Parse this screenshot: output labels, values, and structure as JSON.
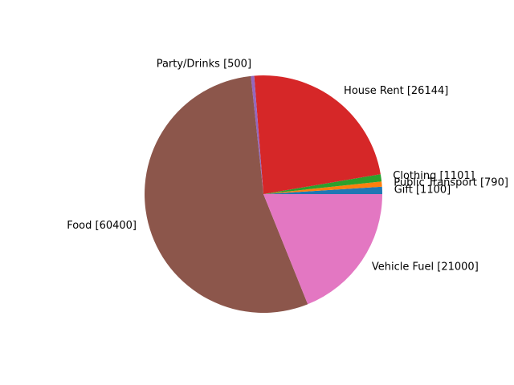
{
  "chart_data": {
    "type": "pie",
    "title": "",
    "slices": [
      {
        "label": "Gift [1100]",
        "value": 1100,
        "color": "#1f77b4"
      },
      {
        "label": "Public Transport [790]",
        "value": 790,
        "color": "#ff7f0e"
      },
      {
        "label": "Clothing [1101]",
        "value": 1101,
        "color": "#2ca02c"
      },
      {
        "label": "House Rent [26144]",
        "value": 26144,
        "color": "#d62728"
      },
      {
        "label": "Party/Drinks [500]",
        "value": 500,
        "color": "#9467bd"
      },
      {
        "label": "Food [60400]",
        "value": 60400,
        "color": "#8c564b"
      },
      {
        "label": "Vehicle Fuel [21000]",
        "value": 21000,
        "color": "#e377c2"
      }
    ],
    "start_angle": 0,
    "direction": "counterclockwise",
    "legend": "none"
  }
}
